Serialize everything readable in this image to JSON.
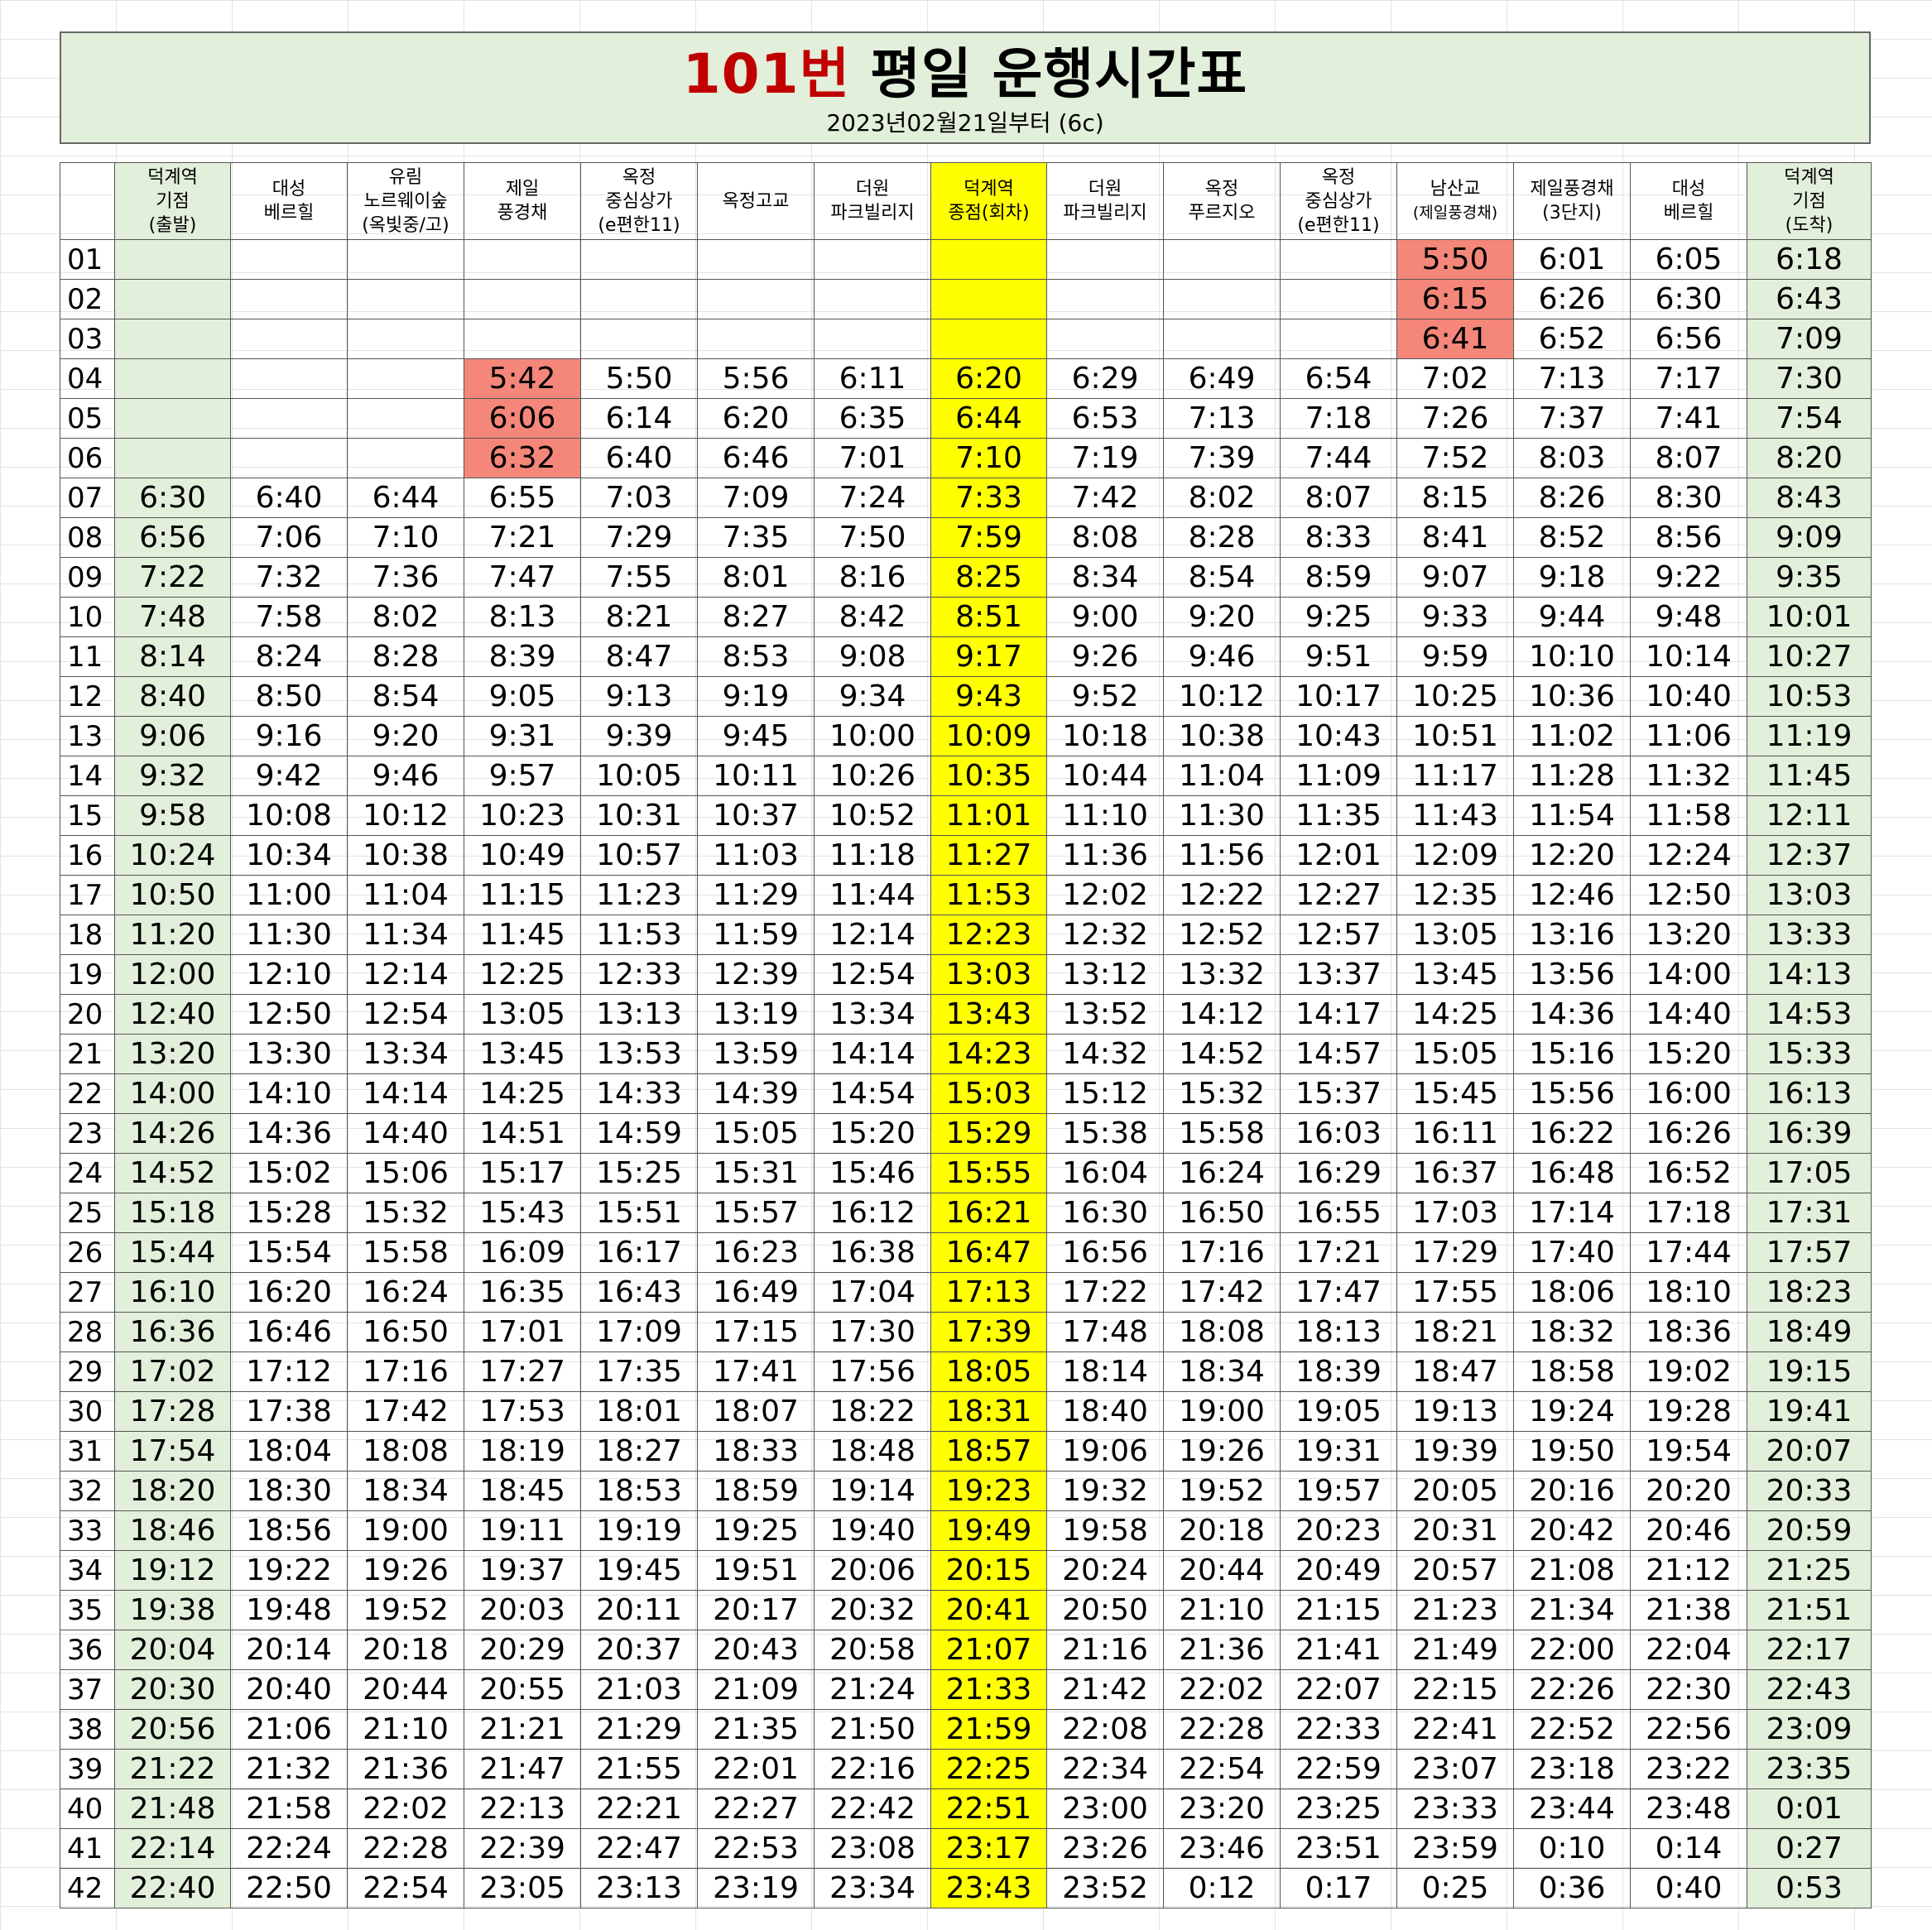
{
  "title": {
    "route": "101번",
    "rest": " 평일 운행시간표",
    "subtitle": "2023년02월21일부터 (6c)"
  },
  "colors": {
    "header_green": "#e2efda",
    "turnaround_yellow": "#ffff00",
    "first_bus_red": "#f4877a",
    "route_red": "#c00000"
  },
  "columns": [
    [
      "덕계역",
      "기점",
      "(출발)"
    ],
    [
      "대성",
      "베르힐"
    ],
    [
      "유림",
      "노르웨이숲",
      "(옥빛중/고)"
    ],
    [
      "제일",
      "풍경채"
    ],
    [
      "옥정",
      "중심상가",
      "(e편한11)"
    ],
    [
      "옥정고교"
    ],
    [
      "더원",
      "파크빌리지"
    ],
    [
      "덕계역",
      "종점(회차)"
    ],
    [
      "더원",
      "파크빌리지"
    ],
    [
      "옥정",
      "푸르지오"
    ],
    [
      "옥정",
      "중심상가",
      "(e편한11)"
    ],
    [
      "남산교",
      "(제일풍경채)"
    ],
    [
      "제일풍경채",
      "(3단지)"
    ],
    [
      "대성",
      "베르힐"
    ],
    [
      "덕계역",
      "기점",
      "(도착)"
    ]
  ],
  "rows": [
    [
      "01",
      "",
      "",
      "",
      "",
      "",
      "",
      "",
      "",
      "",
      "",
      "",
      "5:50",
      "6:01",
      "6:05",
      "6:18"
    ],
    [
      "02",
      "",
      "",
      "",
      "",
      "",
      "",
      "",
      "",
      "",
      "",
      "",
      "6:15",
      "6:26",
      "6:30",
      "6:43"
    ],
    [
      "03",
      "",
      "",
      "",
      "",
      "",
      "",
      "",
      "",
      "",
      "",
      "",
      "6:41",
      "6:52",
      "6:56",
      "7:09"
    ],
    [
      "04",
      "",
      "",
      "",
      "5:42",
      "5:50",
      "5:56",
      "6:11",
      "6:20",
      "6:29",
      "6:49",
      "6:54",
      "7:02",
      "7:13",
      "7:17",
      "7:30"
    ],
    [
      "05",
      "",
      "",
      "",
      "6:06",
      "6:14",
      "6:20",
      "6:35",
      "6:44",
      "6:53",
      "7:13",
      "7:18",
      "7:26",
      "7:37",
      "7:41",
      "7:54"
    ],
    [
      "06",
      "",
      "",
      "",
      "6:32",
      "6:40",
      "6:46",
      "7:01",
      "7:10",
      "7:19",
      "7:39",
      "7:44",
      "7:52",
      "8:03",
      "8:07",
      "8:20"
    ],
    [
      "07",
      "6:30",
      "6:40",
      "6:44",
      "6:55",
      "7:03",
      "7:09",
      "7:24",
      "7:33",
      "7:42",
      "8:02",
      "8:07",
      "8:15",
      "8:26",
      "8:30",
      "8:43"
    ],
    [
      "08",
      "6:56",
      "7:06",
      "7:10",
      "7:21",
      "7:29",
      "7:35",
      "7:50",
      "7:59",
      "8:08",
      "8:28",
      "8:33",
      "8:41",
      "8:52",
      "8:56",
      "9:09"
    ],
    [
      "09",
      "7:22",
      "7:32",
      "7:36",
      "7:47",
      "7:55",
      "8:01",
      "8:16",
      "8:25",
      "8:34",
      "8:54",
      "8:59",
      "9:07",
      "9:18",
      "9:22",
      "9:35"
    ],
    [
      "10",
      "7:48",
      "7:58",
      "8:02",
      "8:13",
      "8:21",
      "8:27",
      "8:42",
      "8:51",
      "9:00",
      "9:20",
      "9:25",
      "9:33",
      "9:44",
      "9:48",
      "10:01"
    ],
    [
      "11",
      "8:14",
      "8:24",
      "8:28",
      "8:39",
      "8:47",
      "8:53",
      "9:08",
      "9:17",
      "9:26",
      "9:46",
      "9:51",
      "9:59",
      "10:10",
      "10:14",
      "10:27"
    ],
    [
      "12",
      "8:40",
      "8:50",
      "8:54",
      "9:05",
      "9:13",
      "9:19",
      "9:34",
      "9:43",
      "9:52",
      "10:12",
      "10:17",
      "10:25",
      "10:36",
      "10:40",
      "10:53"
    ],
    [
      "13",
      "9:06",
      "9:16",
      "9:20",
      "9:31",
      "9:39",
      "9:45",
      "10:00",
      "10:09",
      "10:18",
      "10:38",
      "10:43",
      "10:51",
      "11:02",
      "11:06",
      "11:19"
    ],
    [
      "14",
      "9:32",
      "9:42",
      "9:46",
      "9:57",
      "10:05",
      "10:11",
      "10:26",
      "10:35",
      "10:44",
      "11:04",
      "11:09",
      "11:17",
      "11:28",
      "11:32",
      "11:45"
    ],
    [
      "15",
      "9:58",
      "10:08",
      "10:12",
      "10:23",
      "10:31",
      "10:37",
      "10:52",
      "11:01",
      "11:10",
      "11:30",
      "11:35",
      "11:43",
      "11:54",
      "11:58",
      "12:11"
    ],
    [
      "16",
      "10:24",
      "10:34",
      "10:38",
      "10:49",
      "10:57",
      "11:03",
      "11:18",
      "11:27",
      "11:36",
      "11:56",
      "12:01",
      "12:09",
      "12:20",
      "12:24",
      "12:37"
    ],
    [
      "17",
      "10:50",
      "11:00",
      "11:04",
      "11:15",
      "11:23",
      "11:29",
      "11:44",
      "11:53",
      "12:02",
      "12:22",
      "12:27",
      "12:35",
      "12:46",
      "12:50",
      "13:03"
    ],
    [
      "18",
      "11:20",
      "11:30",
      "11:34",
      "11:45",
      "11:53",
      "11:59",
      "12:14",
      "12:23",
      "12:32",
      "12:52",
      "12:57",
      "13:05",
      "13:16",
      "13:20",
      "13:33"
    ],
    [
      "19",
      "12:00",
      "12:10",
      "12:14",
      "12:25",
      "12:33",
      "12:39",
      "12:54",
      "13:03",
      "13:12",
      "13:32",
      "13:37",
      "13:45",
      "13:56",
      "14:00",
      "14:13"
    ],
    [
      "20",
      "12:40",
      "12:50",
      "12:54",
      "13:05",
      "13:13",
      "13:19",
      "13:34",
      "13:43",
      "13:52",
      "14:12",
      "14:17",
      "14:25",
      "14:36",
      "14:40",
      "14:53"
    ],
    [
      "21",
      "13:20",
      "13:30",
      "13:34",
      "13:45",
      "13:53",
      "13:59",
      "14:14",
      "14:23",
      "14:32",
      "14:52",
      "14:57",
      "15:05",
      "15:16",
      "15:20",
      "15:33"
    ],
    [
      "22",
      "14:00",
      "14:10",
      "14:14",
      "14:25",
      "14:33",
      "14:39",
      "14:54",
      "15:03",
      "15:12",
      "15:32",
      "15:37",
      "15:45",
      "15:56",
      "16:00",
      "16:13"
    ],
    [
      "23",
      "14:26",
      "14:36",
      "14:40",
      "14:51",
      "14:59",
      "15:05",
      "15:20",
      "15:29",
      "15:38",
      "15:58",
      "16:03",
      "16:11",
      "16:22",
      "16:26",
      "16:39"
    ],
    [
      "24",
      "14:52",
      "15:02",
      "15:06",
      "15:17",
      "15:25",
      "15:31",
      "15:46",
      "15:55",
      "16:04",
      "16:24",
      "16:29",
      "16:37",
      "16:48",
      "16:52",
      "17:05"
    ],
    [
      "25",
      "15:18",
      "15:28",
      "15:32",
      "15:43",
      "15:51",
      "15:57",
      "16:12",
      "16:21",
      "16:30",
      "16:50",
      "16:55",
      "17:03",
      "17:14",
      "17:18",
      "17:31"
    ],
    [
      "26",
      "15:44",
      "15:54",
      "15:58",
      "16:09",
      "16:17",
      "16:23",
      "16:38",
      "16:47",
      "16:56",
      "17:16",
      "17:21",
      "17:29",
      "17:40",
      "17:44",
      "17:57"
    ],
    [
      "27",
      "16:10",
      "16:20",
      "16:24",
      "16:35",
      "16:43",
      "16:49",
      "17:04",
      "17:13",
      "17:22",
      "17:42",
      "17:47",
      "17:55",
      "18:06",
      "18:10",
      "18:23"
    ],
    [
      "28",
      "16:36",
      "16:46",
      "16:50",
      "17:01",
      "17:09",
      "17:15",
      "17:30",
      "17:39",
      "17:48",
      "18:08",
      "18:13",
      "18:21",
      "18:32",
      "18:36",
      "18:49"
    ],
    [
      "29",
      "17:02",
      "17:12",
      "17:16",
      "17:27",
      "17:35",
      "17:41",
      "17:56",
      "18:05",
      "18:14",
      "18:34",
      "18:39",
      "18:47",
      "18:58",
      "19:02",
      "19:15"
    ],
    [
      "30",
      "17:28",
      "17:38",
      "17:42",
      "17:53",
      "18:01",
      "18:07",
      "18:22",
      "18:31",
      "18:40",
      "19:00",
      "19:05",
      "19:13",
      "19:24",
      "19:28",
      "19:41"
    ],
    [
      "31",
      "17:54",
      "18:04",
      "18:08",
      "18:19",
      "18:27",
      "18:33",
      "18:48",
      "18:57",
      "19:06",
      "19:26",
      "19:31",
      "19:39",
      "19:50",
      "19:54",
      "20:07"
    ],
    [
      "32",
      "18:20",
      "18:30",
      "18:34",
      "18:45",
      "18:53",
      "18:59",
      "19:14",
      "19:23",
      "19:32",
      "19:52",
      "19:57",
      "20:05",
      "20:16",
      "20:20",
      "20:33"
    ],
    [
      "33",
      "18:46",
      "18:56",
      "19:00",
      "19:11",
      "19:19",
      "19:25",
      "19:40",
      "19:49",
      "19:58",
      "20:18",
      "20:23",
      "20:31",
      "20:42",
      "20:46",
      "20:59"
    ],
    [
      "34",
      "19:12",
      "19:22",
      "19:26",
      "19:37",
      "19:45",
      "19:51",
      "20:06",
      "20:15",
      "20:24",
      "20:44",
      "20:49",
      "20:57",
      "21:08",
      "21:12",
      "21:25"
    ],
    [
      "35",
      "19:38",
      "19:48",
      "19:52",
      "20:03",
      "20:11",
      "20:17",
      "20:32",
      "20:41",
      "20:50",
      "21:10",
      "21:15",
      "21:23",
      "21:34",
      "21:38",
      "21:51"
    ],
    [
      "36",
      "20:04",
      "20:14",
      "20:18",
      "20:29",
      "20:37",
      "20:43",
      "20:58",
      "21:07",
      "21:16",
      "21:36",
      "21:41",
      "21:49",
      "22:00",
      "22:04",
      "22:17"
    ],
    [
      "37",
      "20:30",
      "20:40",
      "20:44",
      "20:55",
      "21:03",
      "21:09",
      "21:24",
      "21:33",
      "21:42",
      "22:02",
      "22:07",
      "22:15",
      "22:26",
      "22:30",
      "22:43"
    ],
    [
      "38",
      "20:56",
      "21:06",
      "21:10",
      "21:21",
      "21:29",
      "21:35",
      "21:50",
      "21:59",
      "22:08",
      "22:28",
      "22:33",
      "22:41",
      "22:52",
      "22:56",
      "23:09"
    ],
    [
      "39",
      "21:22",
      "21:32",
      "21:36",
      "21:47",
      "21:55",
      "22:01",
      "22:16",
      "22:25",
      "22:34",
      "22:54",
      "22:59",
      "23:07",
      "23:18",
      "23:22",
      "23:35"
    ],
    [
      "40",
      "21:48",
      "21:58",
      "22:02",
      "22:13",
      "22:21",
      "22:27",
      "22:42",
      "22:51",
      "23:00",
      "23:20",
      "23:25",
      "23:33",
      "23:44",
      "23:48",
      "0:01"
    ],
    [
      "41",
      "22:14",
      "22:24",
      "22:28",
      "22:39",
      "22:47",
      "22:53",
      "23:08",
      "23:17",
      "23:26",
      "23:46",
      "23:51",
      "23:59",
      "0:10",
      "0:14",
      "0:27"
    ],
    [
      "42",
      "22:40",
      "22:50",
      "22:54",
      "23:05",
      "23:13",
      "23:19",
      "23:34",
      "23:43",
      "23:52",
      "0:12",
      "0:17",
      "0:25",
      "0:36",
      "0:40",
      "0:53"
    ]
  ]
}
